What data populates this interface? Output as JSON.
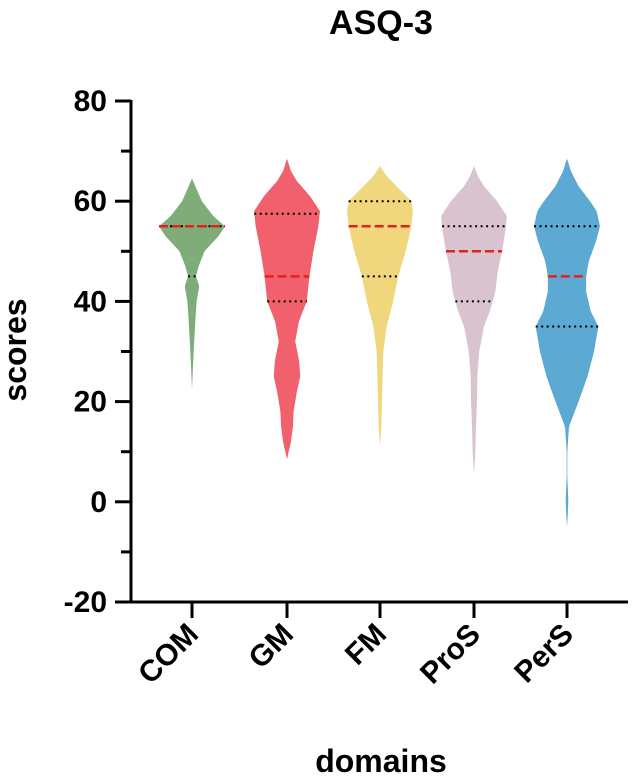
{
  "chart_data": {
    "type": "violin",
    "title": "ASQ-3",
    "xlabel": "domains",
    "ylabel": "scores",
    "ylim": [
      -20,
      80
    ],
    "yticks": [
      -20,
      0,
      20,
      40,
      60,
      80
    ],
    "grid": false,
    "legend": "none",
    "categories": [
      "COM",
      "GM",
      "FM",
      "ProS",
      "PerS"
    ],
    "series": [
      {
        "category": "COM",
        "color": "#7fad7a",
        "median": 55,
        "q1": 45,
        "q3": 55,
        "density": [
          [
            22.5,
            0
          ],
          [
            30,
            0.05
          ],
          [
            36,
            0.1
          ],
          [
            40,
            0.14
          ],
          [
            43,
            0.22
          ],
          [
            45,
            0.12
          ],
          [
            47,
            0.2
          ],
          [
            50,
            0.38
          ],
          [
            53,
            0.8
          ],
          [
            55,
            1.0
          ],
          [
            57,
            0.65
          ],
          [
            60,
            0.3
          ],
          [
            63,
            0.1
          ],
          [
            64.5,
            0
          ]
        ]
      },
      {
        "category": "GM",
        "color": "#f0616d",
        "median": 45,
        "q1": 40,
        "q3": 57.5,
        "density": [
          [
            8.5,
            0
          ],
          [
            12,
            0.12
          ],
          [
            15,
            0.18
          ],
          [
            18,
            0.2
          ],
          [
            22,
            0.3
          ],
          [
            25,
            0.4
          ],
          [
            28,
            0.37
          ],
          [
            32,
            0.25
          ],
          [
            36,
            0.36
          ],
          [
            40,
            0.6
          ],
          [
            45,
            0.68
          ],
          [
            50,
            0.8
          ],
          [
            55,
            0.95
          ],
          [
            58,
            1.0
          ],
          [
            61,
            0.7
          ],
          [
            64,
            0.3
          ],
          [
            66,
            0.12
          ],
          [
            68.5,
            0
          ]
        ]
      },
      {
        "category": "FM",
        "color": "#f0d67c",
        "median": 55,
        "q1": 45,
        "q3": 60,
        "density": [
          [
            11,
            0
          ],
          [
            15,
            0.04
          ],
          [
            20,
            0.06
          ],
          [
            25,
            0.08
          ],
          [
            30,
            0.1
          ],
          [
            35,
            0.2
          ],
          [
            40,
            0.4
          ],
          [
            45,
            0.55
          ],
          [
            50,
            0.78
          ],
          [
            55,
            0.95
          ],
          [
            58,
            1.0
          ],
          [
            60,
            0.95
          ],
          [
            63,
            0.5
          ],
          [
            65,
            0.2
          ],
          [
            67,
            0
          ]
        ]
      },
      {
        "category": "ProS",
        "color": "#d9c3cf",
        "median": 50,
        "q1": 40,
        "q3": 55,
        "density": [
          [
            5.5,
            0
          ],
          [
            10,
            0.04
          ],
          [
            15,
            0.06
          ],
          [
            20,
            0.09
          ],
          [
            25,
            0.1
          ],
          [
            30,
            0.16
          ],
          [
            35,
            0.3
          ],
          [
            38,
            0.48
          ],
          [
            42,
            0.65
          ],
          [
            46,
            0.72
          ],
          [
            50,
            0.85
          ],
          [
            54,
            0.95
          ],
          [
            57,
            1.0
          ],
          [
            60,
            0.7
          ],
          [
            63,
            0.3
          ],
          [
            65,
            0.12
          ],
          [
            67,
            0
          ]
        ]
      },
      {
        "category": "PerS",
        "color": "#5ca9d3",
        "median": 45,
        "q1": 35,
        "q3": 55,
        "density": [
          [
            -5,
            0
          ],
          [
            -3,
            0.02
          ],
          [
            0,
            0.04
          ],
          [
            2,
            0.03
          ],
          [
            5,
            0.01
          ],
          [
            10,
            0.01
          ],
          [
            15,
            0.06
          ],
          [
            20,
            0.35
          ],
          [
            25,
            0.62
          ],
          [
            30,
            0.82
          ],
          [
            35,
            0.95
          ],
          [
            38,
            0.72
          ],
          [
            42,
            0.58
          ],
          [
            45,
            0.58
          ],
          [
            48,
            0.66
          ],
          [
            52,
            0.88
          ],
          [
            55,
            1.0
          ],
          [
            58,
            0.9
          ],
          [
            60,
            0.7
          ],
          [
            63,
            0.35
          ],
          [
            66,
            0.12
          ],
          [
            68.5,
            0
          ]
        ]
      }
    ]
  }
}
